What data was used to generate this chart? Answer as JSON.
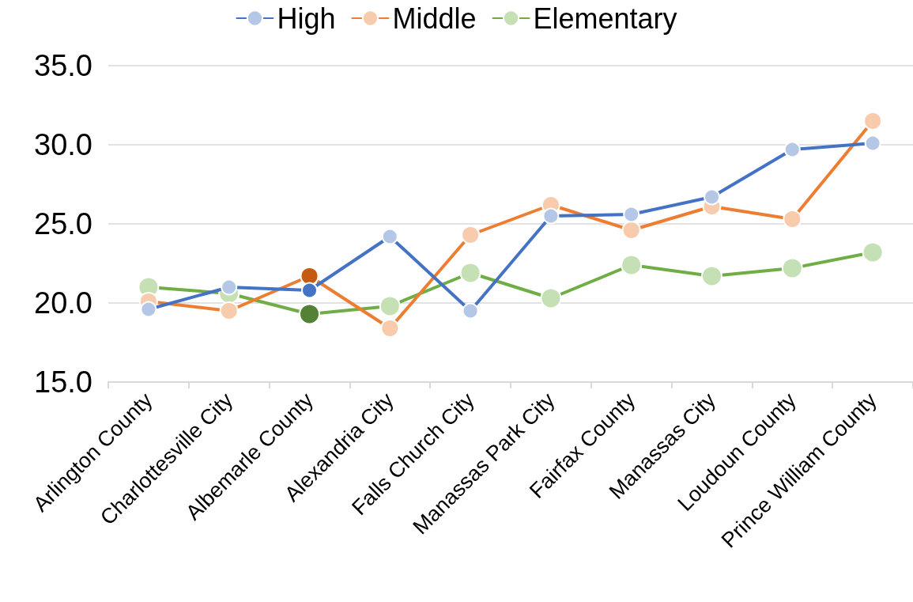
{
  "chart_data": {
    "type": "line",
    "categories": [
      "Arlington County",
      "Charlottesville City",
      "Albemarle County",
      "Alexandria City",
      "Falls Church City",
      "Manassas Park City",
      "Fairfax County",
      "Manassas City",
      "Loudoun County",
      "Prince William County"
    ],
    "series": [
      {
        "name": "High",
        "color": "#4472c4",
        "colors": [
          "#b4c7e7",
          "#b4c7e7",
          "#4472c4",
          "#b4c7e7",
          "#b4c7e7",
          "#b4c7e7",
          "#b4c7e7",
          "#b4c7e7",
          "#b4c7e7",
          "#b4c7e7"
        ],
        "values": [
          19.6,
          21.0,
          20.8,
          24.2,
          19.5,
          25.5,
          25.6,
          26.7,
          29.7,
          30.1
        ]
      },
      {
        "name": "Middle",
        "color": "#ed7d31",
        "colors": [
          "#f8cbad",
          "#f8cbad",
          "#c55a11",
          "#f8cbad",
          "#f8cbad",
          "#f8cbad",
          "#f8cbad",
          "#f8cbad",
          "#f8cbad",
          "#f8cbad"
        ],
        "values": [
          20.1,
          19.5,
          21.7,
          18.4,
          24.3,
          26.2,
          24.6,
          26.1,
          25.3,
          31.5
        ]
      },
      {
        "name": "Elementary",
        "color": "#70ad47",
        "colors": [
          "#c5e0b4",
          "#c5e0b4",
          "#548235",
          "#c5e0b4",
          "#c5e0b4",
          "#c5e0b4",
          "#c5e0b4",
          "#c5e0b4",
          "#c5e0b4",
          "#c5e0b4"
        ],
        "values": [
          21.0,
          20.6,
          19.3,
          19.8,
          21.9,
          20.3,
          22.4,
          21.7,
          22.2,
          23.2
        ]
      }
    ],
    "ylim": [
      15,
      35
    ],
    "yticks": [
      {
        "value": 15,
        "label": "15.0"
      },
      {
        "value": 20,
        "label": "20.0"
      },
      {
        "value": 25,
        "label": "25.0"
      },
      {
        "value": 30,
        "label": "30.0"
      },
      {
        "value": 35,
        "label": "35.0"
      }
    ],
    "grid": "y",
    "legend": "top",
    "marker": "circle",
    "line_style": "solid"
  }
}
